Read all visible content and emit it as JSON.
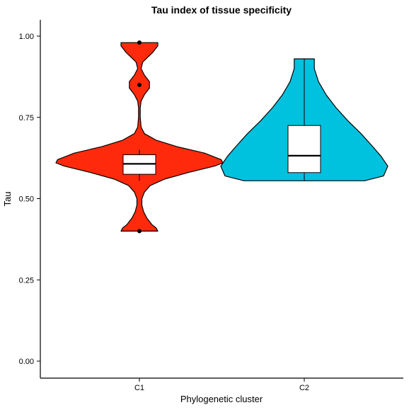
{
  "chart_data": {
    "type": "violin",
    "title": "Tau index of tissue specificity",
    "xlabel": "Phylogenetic cluster",
    "ylabel": "Tau",
    "ylim": [
      0,
      1.05
    ],
    "y_ticks": [
      "0.00",
      "0.25",
      "0.50",
      "0.75",
      "1.00"
    ],
    "y_tick_values": [
      0,
      0.25,
      0.5,
      0.75,
      1.0
    ],
    "categories": [
      "C1",
      "C2"
    ],
    "grid": false,
    "legend": "none",
    "groups": [
      {
        "category": "C1",
        "color": "#FF2A0C",
        "min": 0.4,
        "max": 0.98,
        "density": [
          [
            0.4,
            0.22
          ],
          [
            0.41,
            0.2
          ],
          [
            0.42,
            0.15
          ],
          [
            0.44,
            0.09
          ],
          [
            0.46,
            0.05
          ],
          [
            0.48,
            0.03
          ],
          [
            0.5,
            0.03
          ],
          [
            0.52,
            0.06
          ],
          [
            0.54,
            0.13
          ],
          [
            0.56,
            0.3
          ],
          [
            0.58,
            0.58
          ],
          [
            0.6,
            0.9
          ],
          [
            0.61,
            1.0
          ],
          [
            0.62,
            0.98
          ],
          [
            0.64,
            0.78
          ],
          [
            0.66,
            0.45
          ],
          [
            0.68,
            0.2
          ],
          [
            0.7,
            0.06
          ],
          [
            0.72,
            0.02
          ],
          [
            0.75,
            0.01
          ],
          [
            0.78,
            0.01
          ],
          [
            0.8,
            0.02
          ],
          [
            0.82,
            0.06
          ],
          [
            0.84,
            0.12
          ],
          [
            0.86,
            0.12
          ],
          [
            0.88,
            0.06
          ],
          [
            0.9,
            0.02
          ],
          [
            0.92,
            0.04
          ],
          [
            0.95,
            0.16
          ],
          [
            0.97,
            0.22
          ],
          [
            0.98,
            0.22
          ]
        ],
        "box": {
          "q1": 0.575,
          "median": 0.607,
          "q3": 0.635,
          "whisker_low": 0.555,
          "whisker_high": 0.65
        },
        "outliers": [
          0.4,
          0.85,
          0.98
        ]
      },
      {
        "category": "C2",
        "color": "#00C1DE",
        "min": 0.555,
        "max": 0.93,
        "density": [
          [
            0.555,
            0.72
          ],
          [
            0.57,
            0.95
          ],
          [
            0.6,
            1.0
          ],
          [
            0.63,
            0.92
          ],
          [
            0.66,
            0.82
          ],
          [
            0.7,
            0.68
          ],
          [
            0.74,
            0.52
          ],
          [
            0.78,
            0.38
          ],
          [
            0.82,
            0.26
          ],
          [
            0.86,
            0.17
          ],
          [
            0.9,
            0.12
          ],
          [
            0.93,
            0.12
          ]
        ],
        "box": {
          "q1": 0.58,
          "median": 0.632,
          "q3": 0.725,
          "whisker_low": 0.555,
          "whisker_high": 0.93
        },
        "outliers": []
      }
    ]
  }
}
